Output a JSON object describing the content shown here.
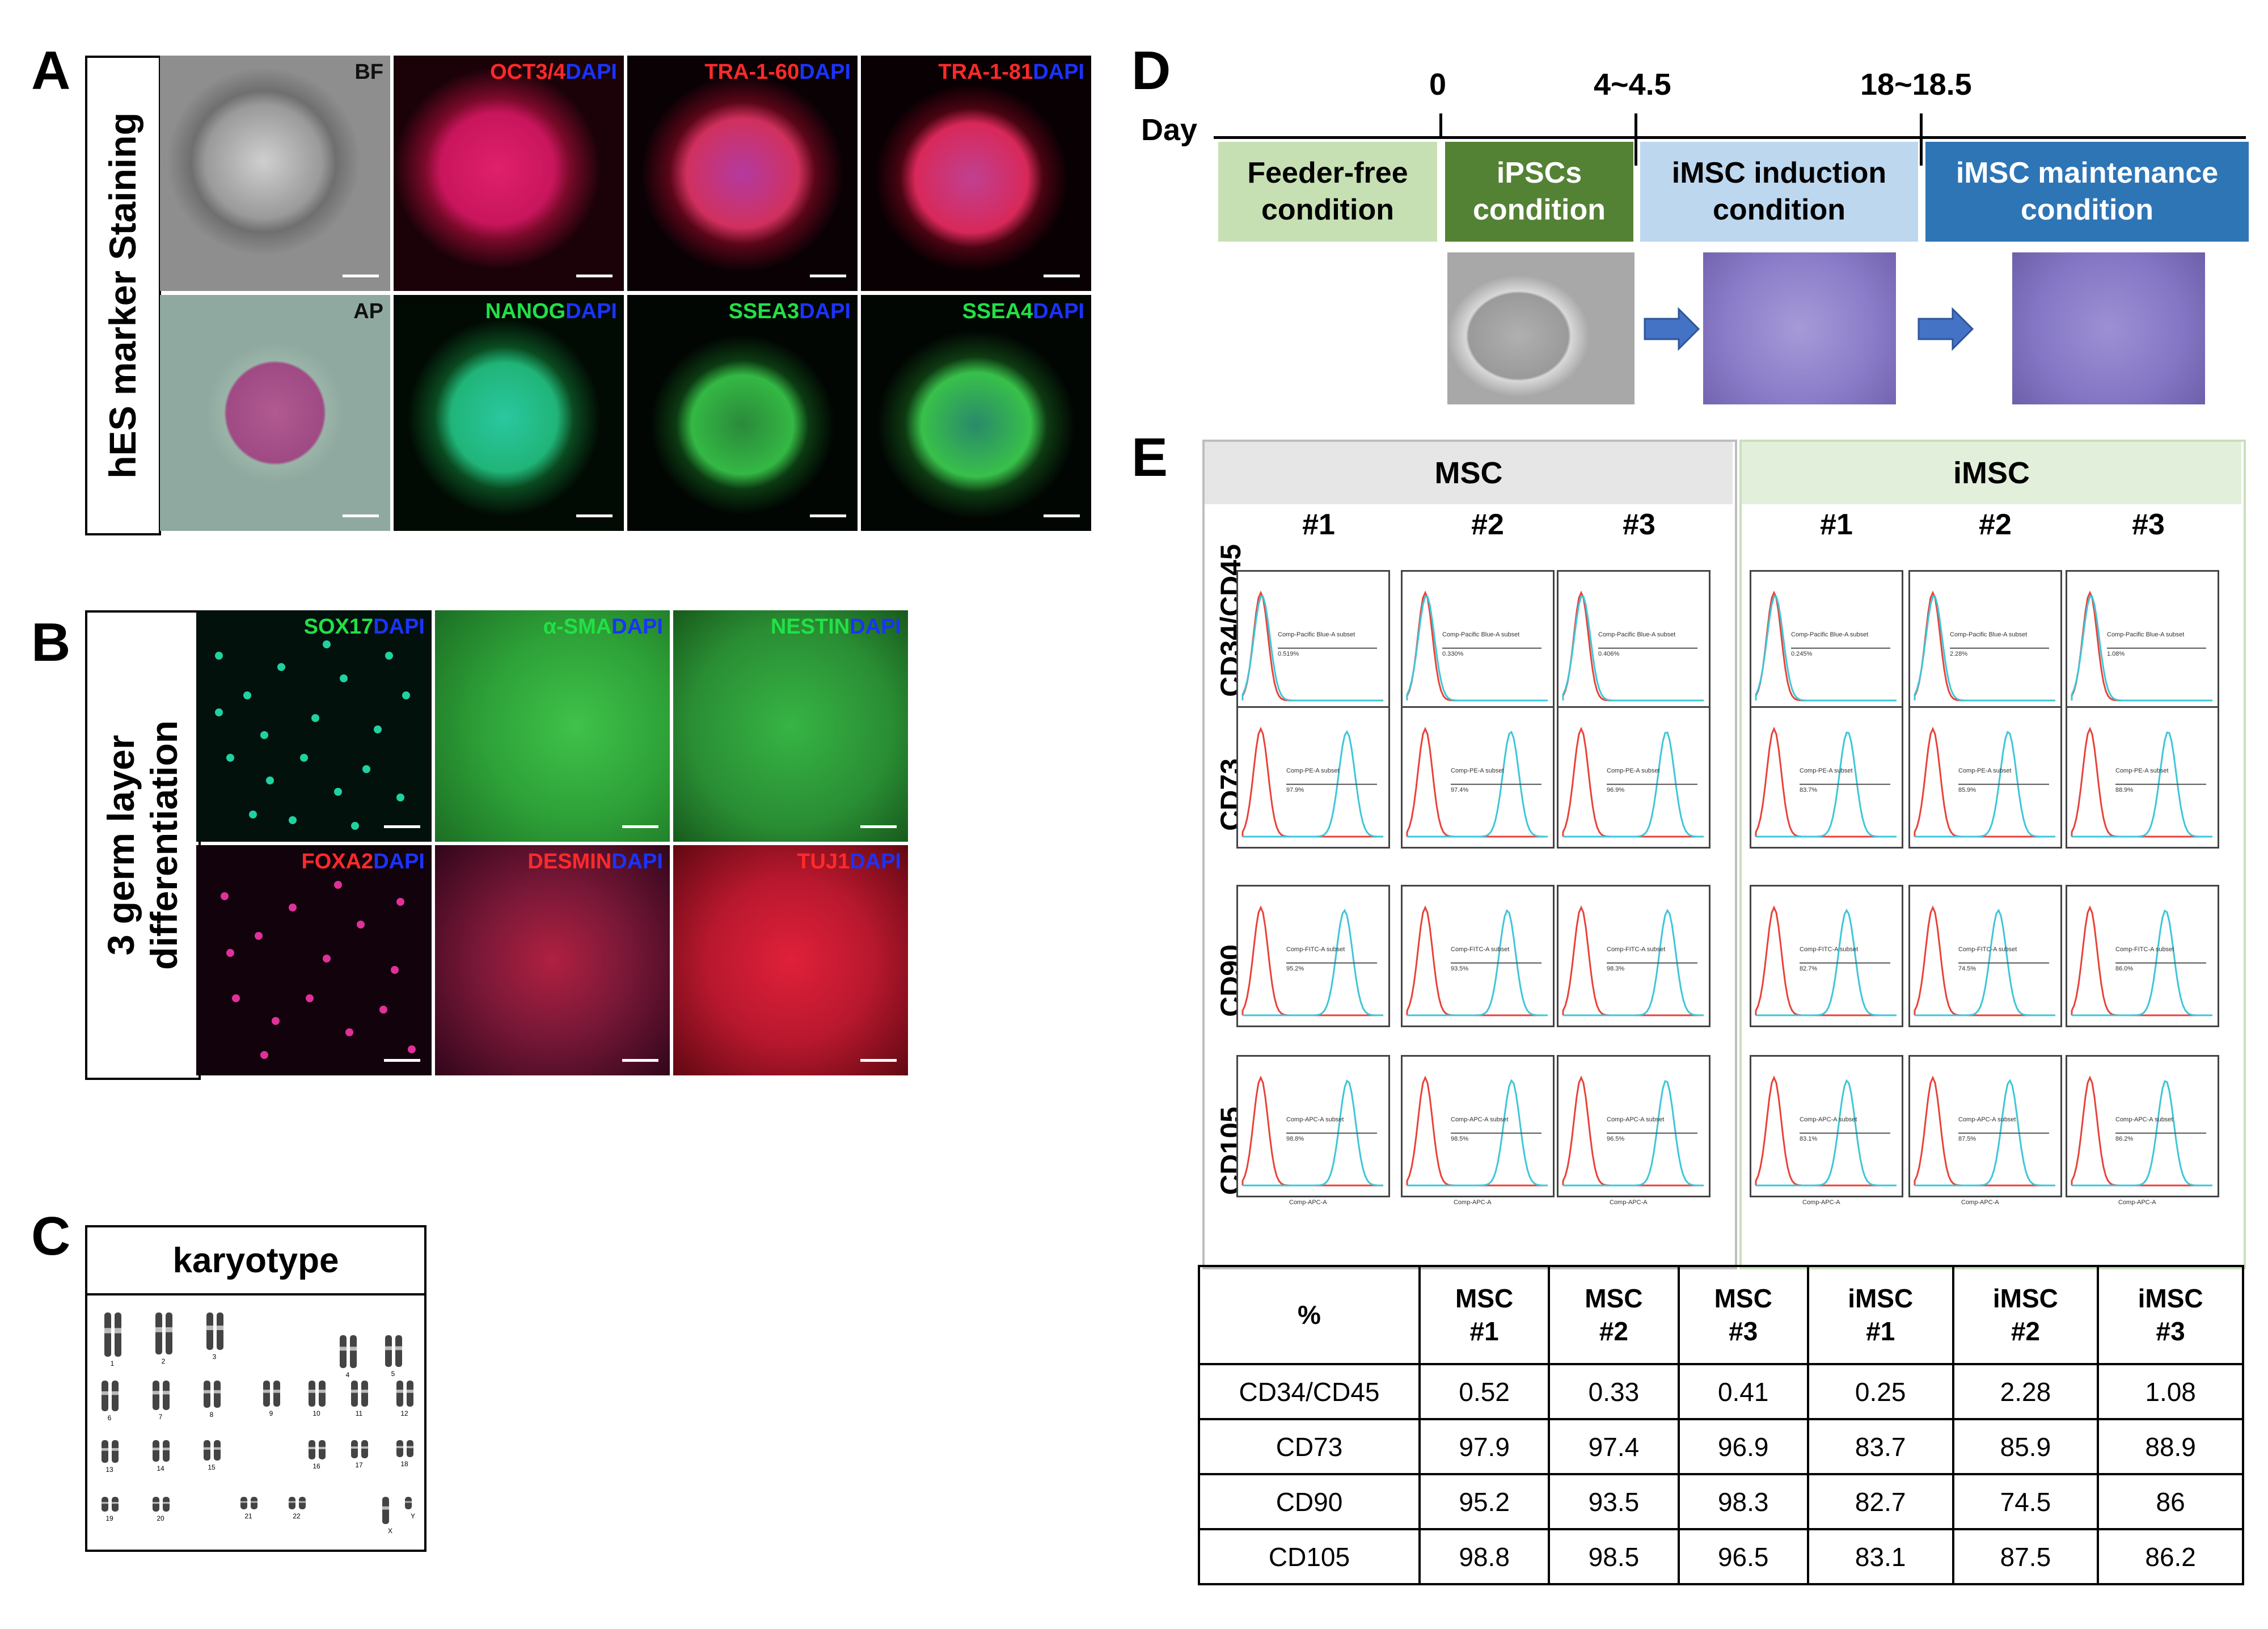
{
  "panels": {
    "a": "A",
    "b": "B",
    "c": "C",
    "d": "D",
    "e": "E"
  },
  "panel_a": {
    "side_label": "hES marker Staining",
    "tiles": [
      {
        "marker": "BF",
        "counter": ""
      },
      {
        "marker": "OCT3/4",
        "counter": "DAPI"
      },
      {
        "marker": "TRA-1-60",
        "counter": "DAPI"
      },
      {
        "marker": "TRA-1-81",
        "counter": "DAPI"
      },
      {
        "marker": "AP",
        "counter": ""
      },
      {
        "marker": "NANOG",
        "counter": "DAPI"
      },
      {
        "marker": "SSEA3",
        "counter": "DAPI"
      },
      {
        "marker": "SSEA4",
        "counter": "DAPI"
      }
    ]
  },
  "panel_b": {
    "side_label_line1": "3 germ layer",
    "side_label_line2": "differentiation",
    "tiles": [
      {
        "marker": "SOX17",
        "counter": "DAPI"
      },
      {
        "marker": "α-SMA",
        "counter": "DAPI"
      },
      {
        "marker": "NESTIN",
        "counter": "DAPI"
      },
      {
        "marker": "FOXA2",
        "counter": "DAPI"
      },
      {
        "marker": "DESMIN",
        "counter": "DAPI"
      },
      {
        "marker": "TUJ1",
        "counter": "DAPI"
      }
    ]
  },
  "panel_c": {
    "title": "karyotype",
    "chromosome_numbers": [
      "1",
      "2",
      "3",
      "4",
      "5",
      "6",
      "7",
      "8",
      "9",
      "10",
      "11",
      "12",
      "13",
      "14",
      "15",
      "16",
      "17",
      "18",
      "19",
      "20",
      "21",
      "22",
      "X",
      "Y"
    ]
  },
  "panel_d": {
    "day_label": "Day",
    "day_marks": [
      "0",
      "4~4.5",
      "18~18.5"
    ],
    "stages": [
      {
        "line1": "Feeder-free",
        "line2": "condition",
        "color": "#c6e0b4",
        "text_color": "#000000"
      },
      {
        "line1": "iPSCs",
        "line2": "condition",
        "color": "#548235",
        "text_color": "#ffffff"
      },
      {
        "line1": "iMSC induction",
        "line2": "condition",
        "color": "#bdd7ee",
        "text_color": "#000000"
      },
      {
        "line1": "iMSC maintenance",
        "line2": "condition",
        "color": "#2e75b6",
        "text_color": "#ffffff"
      }
    ]
  },
  "panel_e": {
    "groups": [
      "MSC",
      "iMSC"
    ],
    "replicates": [
      "#1",
      "#2",
      "#3"
    ],
    "markers": [
      "CD34/CD45",
      "CD73",
      "CD90",
      "CD105"
    ],
    "gate_names": [
      "Comp-Pacific Blue-A subset",
      "Comp-PE-A subset",
      "Comp-FITC-A subset",
      "Comp-APC-A subset"
    ],
    "axis_names": [
      "",
      "",
      "",
      "Comp-APC-A"
    ],
    "histogram_percent_labels": [
      [
        "0.519%",
        "0.330%",
        "0.406%",
        "0.245%",
        "2.28%",
        "1.08%"
      ],
      [
        "97.9%",
        "97.4%",
        "96.9%",
        "83.7%",
        "85.9%",
        "88.9%"
      ],
      [
        "95.2%",
        "93.5%",
        "98.3%",
        "82.7%",
        "74.5%",
        "86.0%"
      ],
      [
        "98.8%",
        "98.5%",
        "96.5%",
        "83.1%",
        "87.5%",
        "86.2%"
      ]
    ],
    "colors": {
      "control": "#e8423a",
      "stained": "#3ec6d8",
      "msc_header": "#e6e6e6",
      "imsc_header": "#e2efda"
    }
  },
  "table": {
    "header": [
      {
        "l1": "%",
        "l2": ""
      },
      {
        "l1": "MSC",
        "l2": "#1"
      },
      {
        "l1": "MSC",
        "l2": "#2"
      },
      {
        "l1": "MSC",
        "l2": "#3"
      },
      {
        "l1": "iMSC",
        "l2": "#1"
      },
      {
        "l1": "iMSC",
        "l2": "#2"
      },
      {
        "l1": "iMSC",
        "l2": "#3"
      }
    ],
    "rows": [
      [
        "CD34/CD45",
        "0.52",
        "0.33",
        "0.41",
        "0.25",
        "2.28",
        "1.08"
      ],
      [
        "CD73",
        "97.9",
        "97.4",
        "96.9",
        "83.7",
        "85.9",
        "88.9"
      ],
      [
        "CD90",
        "95.2",
        "93.5",
        "98.3",
        "82.7",
        "74.5",
        "86"
      ],
      [
        "CD105",
        "98.8",
        "98.5",
        "96.5",
        "83.1",
        "87.5",
        "86.2"
      ]
    ]
  }
}
